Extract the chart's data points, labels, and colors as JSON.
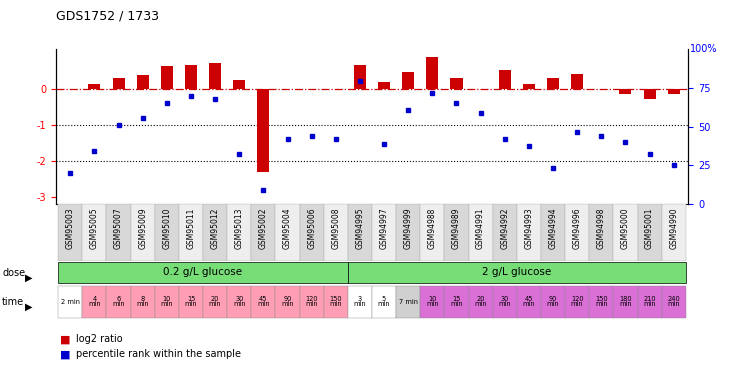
{
  "title": "GDS1752 / 1733",
  "samples": [
    "GSM95003",
    "GSM95005",
    "GSM95007",
    "GSM95009",
    "GSM95010",
    "GSM95011",
    "GSM95012",
    "GSM95013",
    "GSM95002",
    "GSM95004",
    "GSM95006",
    "GSM95008",
    "GSM94995",
    "GSM94997",
    "GSM94999",
    "GSM94988",
    "GSM94989",
    "GSM94991",
    "GSM94992",
    "GSM94993",
    "GSM94994",
    "GSM94996",
    "GSM94998",
    "GSM95000",
    "GSM95001",
    "GSM94990"
  ],
  "log2_ratio": [
    0.0,
    0.12,
    0.3,
    0.38,
    0.63,
    0.65,
    0.7,
    0.25,
    -2.3,
    -0.02,
    -0.02,
    -0.02,
    0.65,
    0.18,
    0.45,
    0.88,
    0.3,
    -0.02,
    0.5,
    0.12,
    0.3,
    0.4,
    -0.02,
    -0.15,
    -0.3,
    -0.15
  ],
  "percentile_raw": [
    17,
    32,
    50,
    55,
    65,
    70,
    68,
    30,
    5,
    40,
    42,
    40,
    80,
    37,
    60,
    72,
    65,
    58,
    40,
    35,
    20,
    45,
    42,
    38,
    30,
    22
  ],
  "bar_color_red": "#cc0000",
  "bar_color_blue": "#0000cc",
  "hline_color": "#cc0000",
  "ylim_left": [
    -3.2,
    1.1
  ],
  "dose_color": "#77dd77",
  "time_color_pink": "#ff9eb5",
  "time_color_purple": "#da70d6",
  "time_color_white": "#ffffff",
  "time_color_gray": "#d0d0d0",
  "sample_color_even": "#d8d8d8",
  "sample_color_odd": "#eeeeee",
  "n_samples": 26,
  "time_labels_1": [
    "2 min",
    "4\nmin",
    "6\nmin",
    "8\nmin",
    "10\nmin",
    "15\nmin",
    "20\nmin",
    "30\nmin",
    "45\nmin",
    "90\nmin",
    "120\nmin",
    "150\nmin"
  ],
  "time_labels_2": [
    "3\nmin",
    "5\nmin",
    "7 min",
    "10\nmin",
    "15\nmin",
    "20\nmin",
    "30\nmin",
    "45\nmin",
    "90\nmin",
    "120\nmin",
    "150\nmin",
    "180\nmin",
    "210\nmin",
    "240\nmin"
  ]
}
